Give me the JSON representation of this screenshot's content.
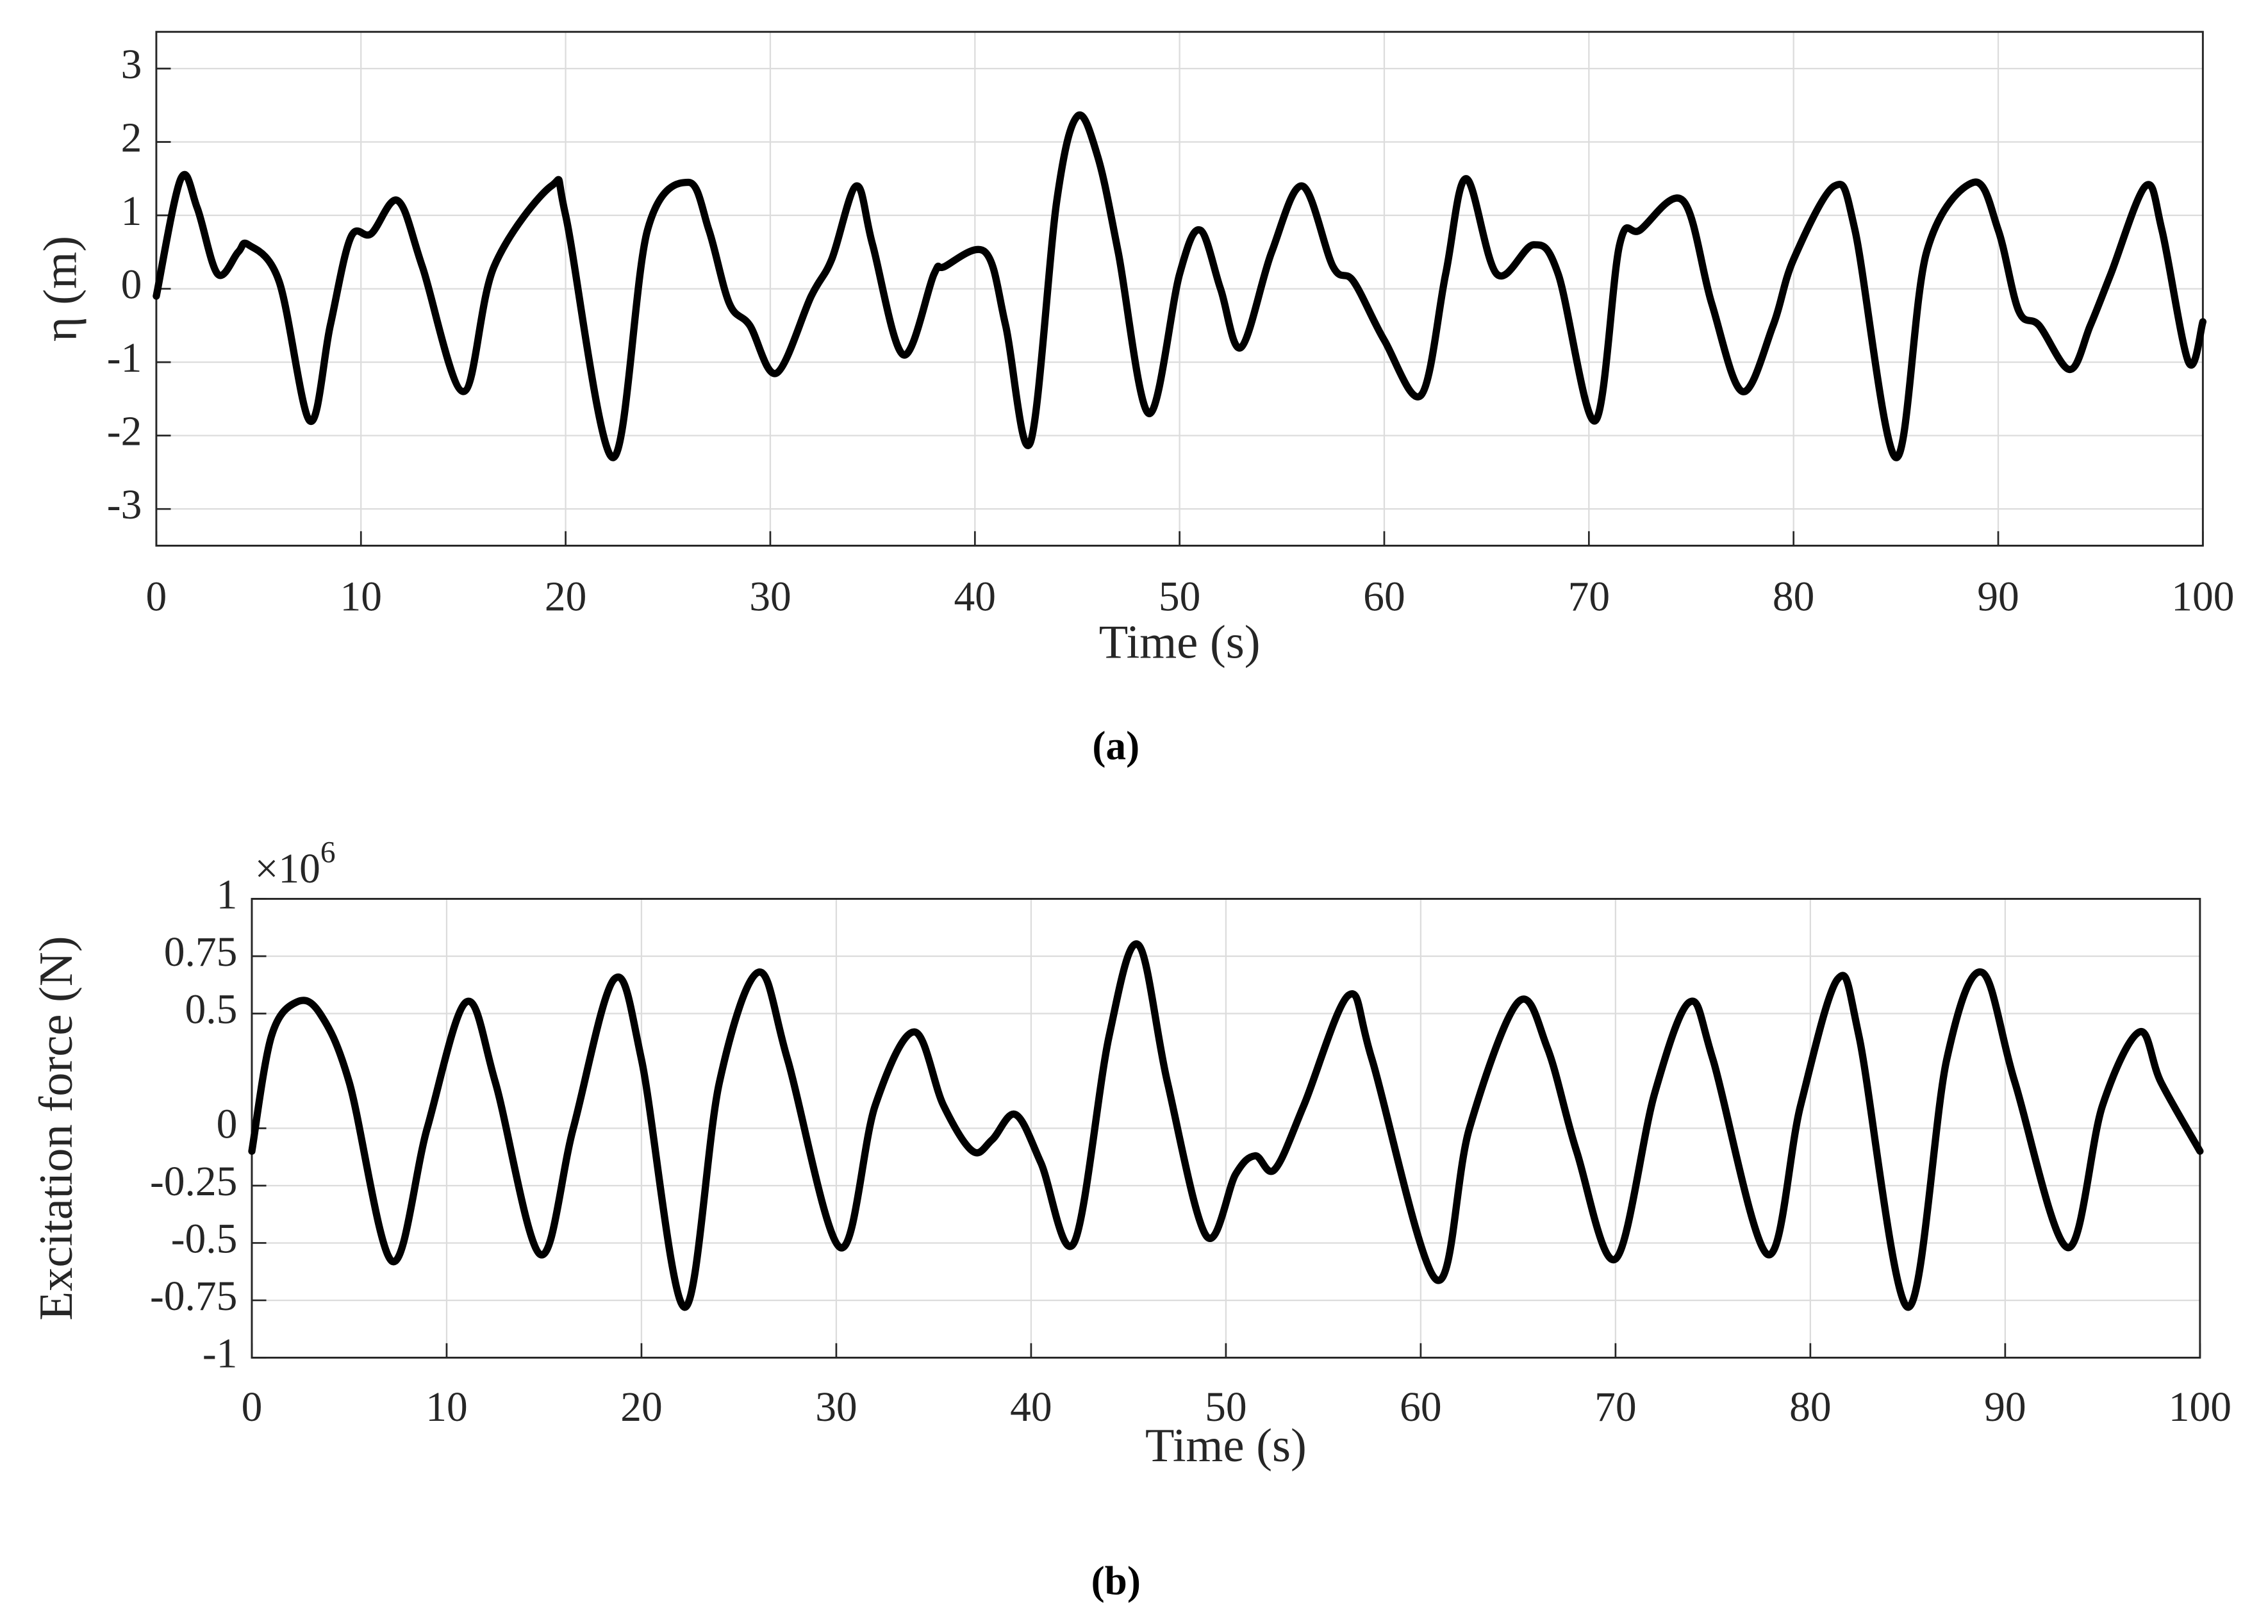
{
  "chart_data": [
    {
      "type": "line",
      "caption": "(a)",
      "xlabel": "Time (s)",
      "ylabel": "η (m)",
      "grid": true,
      "color": "#000000",
      "xlim": [
        0,
        100
      ],
      "xticks": [
        0,
        10,
        20,
        30,
        40,
        50,
        60,
        70,
        80,
        90,
        100
      ],
      "ylim": [
        -3.5,
        3.5
      ],
      "yticks": [
        -3,
        -2,
        -1,
        0,
        1,
        2,
        3
      ],
      "x": [
        0,
        1.2,
        2,
        3,
        4,
        4.5,
        6,
        7.5,
        8.5,
        9.5,
        10.5,
        11.8,
        13,
        15,
        16.5,
        19.3,
        20,
        22.3,
        24,
        26,
        27,
        28,
        29,
        30.3,
        32,
        33,
        34.2,
        35,
        36.5,
        38,
        38.5,
        40.5,
        41.5,
        42.7,
        44,
        45,
        46,
        47,
        48.5,
        50,
        51,
        52,
        53,
        54.5,
        56,
        57.5,
        58.5,
        60,
        61.8,
        63,
        64,
        65.5,
        67.3,
        68.5,
        70.3,
        71.5,
        72.5,
        74.6,
        76,
        77.5,
        79,
        80,
        82,
        83,
        85,
        86.5,
        88.8,
        90,
        91,
        92,
        93.5,
        94.5,
        95.5,
        97.2,
        98,
        99.3,
        100
      ],
      "values": [
        -0.1,
        1.5,
        1.1,
        0.2,
        0.5,
        0.6,
        0.1,
        -1.8,
        -0.5,
        0.7,
        0.75,
        1.2,
        0.3,
        -1.4,
        0.3,
        1.4,
        1.0,
        -2.3,
        0.8,
        1.45,
        0.8,
        -0.2,
        -0.5,
        -1.15,
        -0.1,
        0.4,
        1.4,
        0.6,
        -0.9,
        0.2,
        0.3,
        0.5,
        -0.5,
        -2.1,
        1.2,
        2.35,
        1.8,
        0.5,
        -1.7,
        0.2,
        0.8,
        0,
        -0.8,
        0.5,
        1.4,
        0.3,
        0.1,
        -0.7,
        -1.45,
        0.2,
        1.5,
        0.2,
        0.6,
        0.2,
        -1.8,
        0.6,
        0.8,
        1.2,
        -0.2,
        -1.4,
        -0.5,
        0.4,
        1.4,
        0.8,
        -2.3,
        0.5,
        1.45,
        0.8,
        -0.3,
        -0.5,
        -1.1,
        -0.5,
        0.2,
        1.4,
        0.8,
        -1.0,
        -0.45
      ]
    },
    {
      "type": "line",
      "caption": "(b)",
      "xlabel": "Time (s)",
      "ylabel": "Excitation force (N)",
      "multiplier": {
        "base": "×10",
        "exponent": "6"
      },
      "grid": true,
      "color": "#000000",
      "xlim": [
        0,
        100
      ],
      "xticks": [
        0,
        10,
        20,
        30,
        40,
        50,
        60,
        70,
        80,
        90,
        100
      ],
      "ylim": [
        -1,
        1
      ],
      "yticks": [
        -1,
        -0.75,
        -0.5,
        -0.25,
        0,
        0.5,
        0.75,
        1
      ],
      "x": [
        0,
        1,
        2.3,
        3.5,
        5,
        7.2,
        9,
        11,
        12.5,
        14.8,
        16.5,
        18.6,
        20,
        22.2,
        24,
        26,
        27.5,
        30.2,
        32,
        34,
        35.5,
        37,
        38,
        39.2,
        40.5,
        42.2,
        44,
        45.5,
        47,
        49,
        50.5,
        51.5,
        52.5,
        54,
        56.3,
        57.5,
        60.8,
        62.5,
        65,
        66.5,
        68,
        70,
        72,
        73.8,
        75,
        77.8,
        79.5,
        81.4,
        82.5,
        85,
        87,
        88.8,
        90.5,
        93.2,
        95,
        96.9,
        98,
        100
      ],
      "values": [
        -0.1,
        0.4,
        0.55,
        0.5,
        0.2,
        -0.58,
        0.0,
        0.55,
        0.2,
        -0.55,
        0.0,
        0.65,
        0.3,
        -0.78,
        0.2,
        0.68,
        0.3,
        -0.52,
        0.1,
        0.42,
        0.1,
        -0.1,
        -0.05,
        0.06,
        -0.15,
        -0.5,
        0.4,
        0.8,
        0.2,
        -0.47,
        -0.2,
        -0.12,
        -0.18,
        0.1,
        0.58,
        0.3,
        -0.66,
        0.0,
        0.55,
        0.35,
        -0.1,
        -0.57,
        0.15,
        0.55,
        0.3,
        -0.55,
        0.1,
        0.65,
        0.4,
        -0.78,
        0.3,
        0.68,
        0.2,
        -0.52,
        0.1,
        0.42,
        0.2,
        -0.1
      ]
    }
  ]
}
